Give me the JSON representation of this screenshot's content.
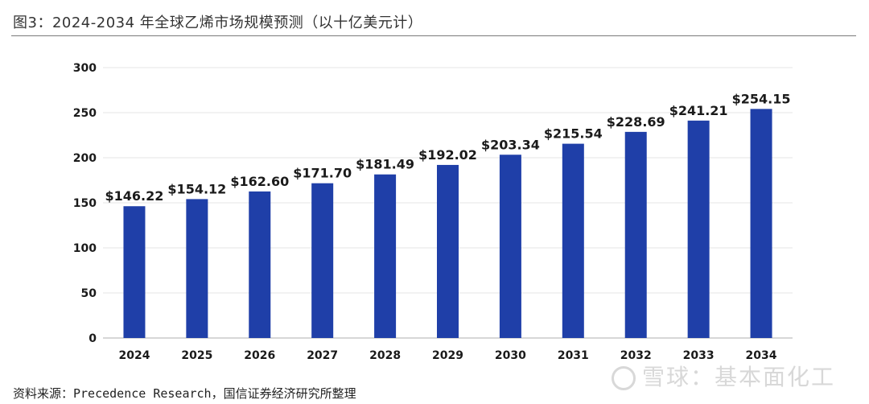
{
  "figure": {
    "title": "图3：2024-2034 年全球乙烯市场规模预测（以十亿美元计）",
    "source": "资料来源：Precedence Research，国信证券经济研究所整理",
    "watermark": "雪球：基本面化工"
  },
  "colors": {
    "bar": "#1f3fa8",
    "grid": "#e6e6e6",
    "axis": "#bfbfbf",
    "label": "#1a1a1a"
  },
  "chart_data": {
    "type": "bar",
    "categories": [
      "2024",
      "2025",
      "2026",
      "2027",
      "2028",
      "2029",
      "2030",
      "2031",
      "2032",
      "2033",
      "2034"
    ],
    "values": [
      146.22,
      154.12,
      162.6,
      171.7,
      181.49,
      192.02,
      203.34,
      215.54,
      228.69,
      241.21,
      254.15
    ],
    "value_labels": [
      "$146.22",
      "$154.12",
      "$162.60",
      "$171.70",
      "$181.49",
      "$192.02",
      "$203.34",
      "$215.54",
      "$228.69",
      "$241.21",
      "$254.15"
    ],
    "yticks": [
      "0",
      "50",
      "100",
      "150",
      "200",
      "250",
      "300"
    ],
    "title": "",
    "xlabel": "",
    "ylabel": "",
    "ylim": [
      0,
      300
    ],
    "grid": true,
    "legend": "none"
  }
}
